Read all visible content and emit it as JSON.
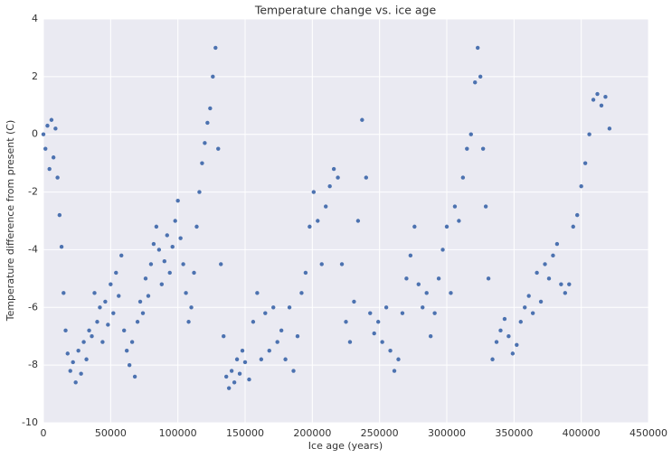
{
  "chart_data": {
    "type": "scatter",
    "title": "Temperature change vs. ice age",
    "x_label": "Ice age (years)",
    "y_label": "Temperature difference from present (C)",
    "color": "#4c72b0",
    "grid": true,
    "xlim": [
      0,
      450000
    ],
    "xticks": [
      0,
      50000,
      100000,
      150000,
      200000,
      250000,
      300000,
      350000,
      400000,
      450000
    ],
    "ylim": [
      -10,
      4
    ],
    "yticks": [
      -10,
      -8,
      -6,
      -4,
      -2,
      0,
      2,
      4
    ],
    "x": [
      0,
      1500,
      3000,
      4500,
      6000,
      7500,
      9000,
      10500,
      12000,
      13500,
      15000,
      16500,
      18000,
      20000,
      22000,
      24000,
      26000,
      28000,
      30000,
      32000,
      34000,
      36000,
      38000,
      40000,
      42000,
      44000,
      46000,
      48000,
      50000,
      52000,
      54000,
      56000,
      58000,
      60000,
      62000,
      64000,
      66000,
      68000,
      70000,
      72000,
      74000,
      76000,
      78000,
      80000,
      82000,
      84000,
      86000,
      88000,
      90000,
      92000,
      94000,
      96000,
      98000,
      100000,
      102000,
      104000,
      106000,
      108000,
      110000,
      112000,
      114000,
      116000,
      118000,
      120000,
      122000,
      124000,
      126000,
      128000,
      130000,
      132000,
      134000,
      136000,
      138000,
      140000,
      142000,
      144000,
      146000,
      148000,
      150000,
      153000,
      156000,
      159000,
      162000,
      165000,
      168000,
      171000,
      174000,
      177000,
      180000,
      183000,
      186000,
      189000,
      192000,
      195000,
      198000,
      201000,
      204000,
      207000,
      210000,
      213000,
      216000,
      219000,
      222000,
      225000,
      228000,
      231000,
      234000,
      237000,
      240000,
      243000,
      246000,
      249000,
      252000,
      255000,
      258000,
      261000,
      264000,
      267000,
      270000,
      273000,
      276000,
      279000,
      282000,
      285000,
      288000,
      291000,
      294000,
      297000,
      300000,
      303000,
      306000,
      309000,
      312000,
      315000,
      318000,
      321000,
      323000,
      325000,
      327000,
      329000,
      331000,
      334000,
      337000,
      340000,
      343000,
      346000,
      349000,
      352000,
      355000,
      358000,
      361000,
      364000,
      367000,
      370000,
      373000,
      376000,
      379000,
      382000,
      385000,
      388000,
      391000,
      394000,
      397000,
      400000,
      403000,
      406000,
      409000,
      412000,
      415000,
      418000,
      421000
    ],
    "y": [
      0,
      -0.5,
      0.3,
      -1.2,
      0.5,
      -0.8,
      0.2,
      -1.5,
      -2.8,
      -3.9,
      -5.5,
      -6.8,
      -7.6,
      -8.2,
      -7.9,
      -8.6,
      -7.5,
      -8.3,
      -7.2,
      -7.8,
      -6.8,
      -7.0,
      -5.5,
      -6.5,
      -6.0,
      -7.2,
      -5.8,
      -6.6,
      -5.2,
      -6.2,
      -4.8,
      -5.6,
      -4.2,
      -6.8,
      -7.5,
      -8.0,
      -7.2,
      -8.4,
      -6.5,
      -5.8,
      -6.2,
      -5.0,
      -5.6,
      -4.5,
      -3.8,
      -3.2,
      -4.0,
      -5.2,
      -4.4,
      -3.5,
      -4.8,
      -3.9,
      -3.0,
      -2.3,
      -3.6,
      -4.5,
      -5.5,
      -6.5,
      -6.0,
      -4.8,
      -3.2,
      -2.0,
      -1.0,
      -0.3,
      0.4,
      0.9,
      2.0,
      3.0,
      -0.5,
      -4.5,
      -7.0,
      -8.4,
      -8.8,
      -8.2,
      -8.6,
      -7.8,
      -8.3,
      -7.5,
      -7.9,
      -8.5,
      -6.5,
      -5.5,
      -7.8,
      -6.2,
      -7.5,
      -6.0,
      -7.2,
      -6.8,
      -7.8,
      -6.0,
      -8.2,
      -7.0,
      -5.5,
      -4.8,
      -3.2,
      -2.0,
      -3.0,
      -4.5,
      -2.5,
      -1.8,
      -1.2,
      -1.5,
      -4.5,
      -6.5,
      -7.2,
      -5.8,
      -3.0,
      0.5,
      -1.5,
      -6.2,
      -6.9,
      -6.5,
      -7.2,
      -6.0,
      -7.5,
      -8.2,
      -7.8,
      -6.2,
      -5.0,
      -4.2,
      -3.2,
      -5.2,
      -6.0,
      -5.5,
      -7.0,
      -6.2,
      -5.0,
      -4.0,
      -3.2,
      -5.5,
      -2.5,
      -3.0,
      -1.5,
      -0.5,
      0.0,
      1.8,
      3.0,
      2.0,
      -0.5,
      -2.5,
      -5.0,
      -7.8,
      -7.2,
      -6.8,
      -6.4,
      -7.0,
      -7.6,
      -7.3,
      -6.5,
      -6.0,
      -5.6,
      -6.2,
      -4.8,
      -5.8,
      -4.5,
      -5.0,
      -4.2,
      -3.8,
      -5.2,
      -5.5,
      -5.2,
      -3.2,
      -2.8,
      -1.8,
      -1.0,
      0.0,
      1.2,
      1.4,
      1.0,
      1.3,
      0.2
    ]
  }
}
